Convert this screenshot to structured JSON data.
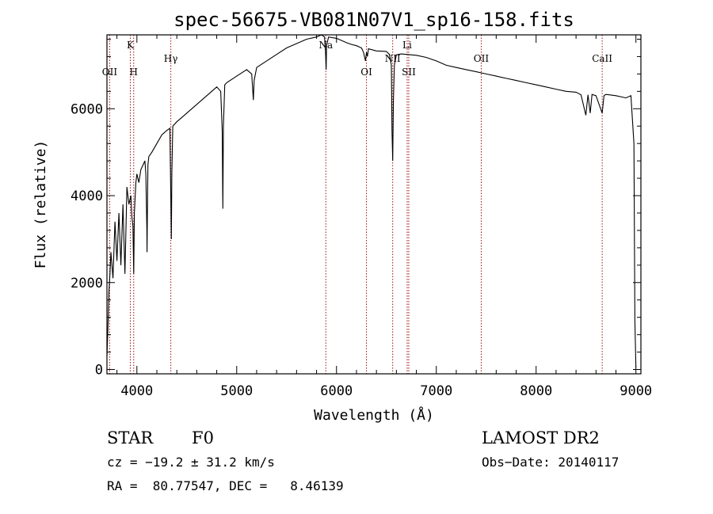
{
  "chart_data": {
    "type": "line",
    "title": "spec-56675-VB081N07V1_sp16-158.fits",
    "xlabel": "Wavelength (Å)",
    "ylabel": "Flux (relative)",
    "xlim": [
      3700,
      9050
    ],
    "ylim": [
      -100,
      7700
    ],
    "xticks": [
      4000,
      5000,
      6000,
      7000,
      8000,
      9000
    ],
    "yticks": [
      0,
      2000,
      4000,
      6000
    ],
    "grid": false,
    "series": [
      {
        "x": [
          3700,
          3710,
          3720,
          3730,
          3740,
          3760,
          3780,
          3800,
          3820,
          3840,
          3860,
          3880,
          3900,
          3920,
          3940,
          3950,
          3960,
          3968,
          3975,
          3990,
          4000,
          4020,
          4040,
          4060,
          4080,
          4090,
          4100,
          4102,
          4105,
          4110,
          4120,
          4150,
          4200,
          4250,
          4300,
          4330,
          4340,
          4345,
          4350,
          4360,
          4400,
          4450,
          4500,
          4600,
          4700,
          4800,
          4840,
          4855,
          4861,
          4867,
          4880,
          4900,
          5000,
          5100,
          5150,
          5167,
          5175,
          5200,
          5300,
          5400,
          5500,
          5600,
          5700,
          5800,
          5850,
          5880,
          5890,
          5896,
          5900,
          5920,
          6000,
          6100,
          6150,
          6200,
          6250,
          6270,
          6290,
          6300,
          6310,
          6320,
          6400,
          6500,
          6530,
          6550,
          6556,
          6563,
          6570,
          6580,
          6600,
          6650,
          6700,
          6800,
          6900,
          7000,
          7100,
          7200,
          7300,
          7400,
          7500,
          7600,
          7700,
          7800,
          7900,
          8000,
          8100,
          8200,
          8300,
          8400,
          8450,
          8498,
          8520,
          8542,
          8560,
          8600,
          8662,
          8680,
          8700,
          8800,
          8900,
          8950,
          8980,
          8990,
          9000
        ],
        "y": [
          300,
          1000,
          1800,
          2200,
          2700,
          2100,
          3400,
          2500,
          3600,
          2400,
          3800,
          2200,
          4200,
          3800,
          4000,
          3500,
          3300,
          2200,
          3600,
          4300,
          4500,
          4300,
          4600,
          4700,
          4800,
          4500,
          3200,
          2700,
          3500,
          4700,
          4900,
          5000,
          5200,
          5400,
          5500,
          5550,
          4000,
          3000,
          4500,
          5600,
          5700,
          5800,
          5900,
          6100,
          6300,
          6500,
          6400,
          5500,
          3700,
          5600,
          6550,
          6600,
          6750,
          6900,
          6800,
          6200,
          6650,
          6950,
          7100,
          7250,
          7400,
          7500,
          7600,
          7650,
          7700,
          7650,
          7300,
          6900,
          7450,
          7650,
          7620,
          7520,
          7480,
          7450,
          7400,
          7300,
          7100,
          7300,
          7200,
          7380,
          7330,
          7320,
          7250,
          7000,
          5500,
          4800,
          6200,
          7000,
          7240,
          7260,
          7250,
          7230,
          7180,
          7100,
          7000,
          6950,
          6900,
          6850,
          6800,
          6750,
          6700,
          6650,
          6600,
          6550,
          6500,
          6450,
          6400,
          6380,
          6320,
          5850,
          6320,
          5900,
          6330,
          6300,
          5900,
          6300,
          6330,
          6300,
          6250,
          6300,
          5200,
          1100,
          50
        ]
      }
    ],
    "line_markers": [
      {
        "label": "OII",
        "x": 3727,
        "tier": "low"
      },
      {
        "label": "K",
        "x": 3934,
        "tier": "top"
      },
      {
        "label": "H",
        "x": 3968,
        "tier": "low"
      },
      {
        "label": "Hγ",
        "x": 4340,
        "tier": "mid"
      },
      {
        "label": "Na",
        "x": 5893,
        "tier": "top"
      },
      {
        "label": "OI",
        "x": 6300,
        "tier": "low"
      },
      {
        "label": "NII",
        "x": 6563,
        "tier": "mid"
      },
      {
        "label": "Li",
        "x": 6708,
        "tier": "top"
      },
      {
        "label": "SII",
        "x": 6724,
        "tier": "low"
      },
      {
        "label": "OII",
        "x": 7450,
        "tier": "mid"
      },
      {
        "label": "CaII",
        "x": 8662,
        "tier": "mid"
      }
    ]
  },
  "info": {
    "object_class": "STAR",
    "subclass": "F0",
    "survey": "LAMOST DR2",
    "redshift": "cz = −19.2 ± 31.2 km/s",
    "obs_date": "Obs−Date: 20140117",
    "coords": "RA =  80.77547, DEC =   8.46139"
  },
  "colors": {
    "spectrum": "#000000",
    "marker_lines": "#a01010",
    "axes": "#000000"
  }
}
